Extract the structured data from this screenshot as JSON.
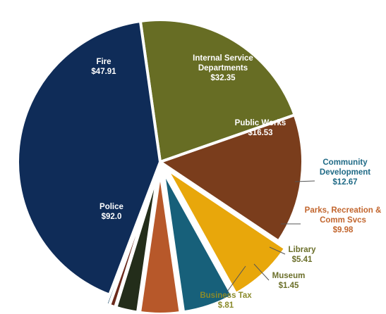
{
  "chart_data": {
    "type": "pie",
    "title": "",
    "slices": [
      {
        "name": "Fire",
        "value_label": "$47.91",
        "value": 47.91,
        "color": "#676d24",
        "label_color": "#ffffff",
        "exploded": false
      },
      {
        "name": "Internal Service Departments",
        "value_label": "$32.35",
        "value": 32.35,
        "color": "#7a3d1c",
        "label_color": "#ffffff",
        "exploded": false
      },
      {
        "name": "Public Works",
        "value_label": "$16.53",
        "value": 16.53,
        "color": "#e8a70b",
        "label_color": "#ffffff",
        "exploded": true
      },
      {
        "name": "Community Development",
        "value_label": "$12.67",
        "value": 12.67,
        "color": "#17607a",
        "label_color": "#1f6a86",
        "exploded": true
      },
      {
        "name": "Parks, Recreation & Comm Svcs",
        "value_label": "$9.98",
        "value": 9.98,
        "color": "#b7582a",
        "label_color": "#c2662e",
        "exploded": true
      },
      {
        "name": "Library",
        "value_label": "$5.41",
        "value": 5.41,
        "color": "#232d1a",
        "label_color": "#6b6f2a",
        "exploded": true
      },
      {
        "name": "Museum",
        "value_label": "$1.45",
        "value": 1.45,
        "color": "#6b2a1c",
        "label_color": "#6b6f2a",
        "exploded": true
      },
      {
        "name": "Business Tax",
        "value_label": "$.81",
        "value": 0.81,
        "color": "#1c4a6b",
        "label_color": "#8a8a2a",
        "exploded": true
      },
      {
        "name": "Police",
        "value_label": "$92.0",
        "value": 92.0,
        "color": "#0f2c58",
        "label_color": "#ffffff",
        "exploded": false
      }
    ],
    "label_lines": [
      "Internal Service",
      "Departments",
      "Parks, Recreation &",
      "Comm Svcs",
      "Community",
      "Development"
    ]
  }
}
